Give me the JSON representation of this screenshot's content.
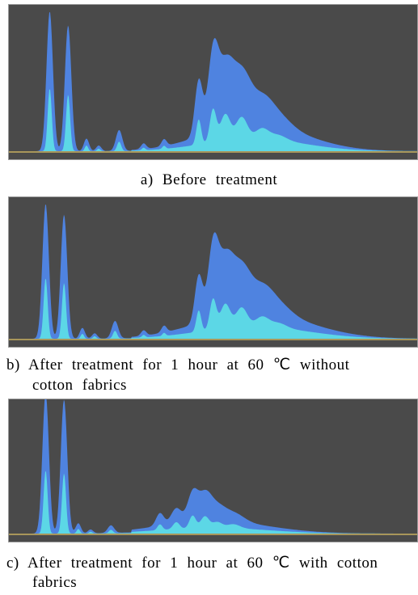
{
  "figure": {
    "captions": [
      {
        "label": "a)",
        "lines": [
          "Before treatment"
        ]
      },
      {
        "label": "b)",
        "lines": [
          "After treatment for 1 hour at 60 ℃ without",
          "cotton fabrics"
        ]
      },
      {
        "label": "c)",
        "lines": [
          "After treatment for 1 hour at 60 ℃ with cotton",
          "fabrics"
        ]
      }
    ]
  }
}
